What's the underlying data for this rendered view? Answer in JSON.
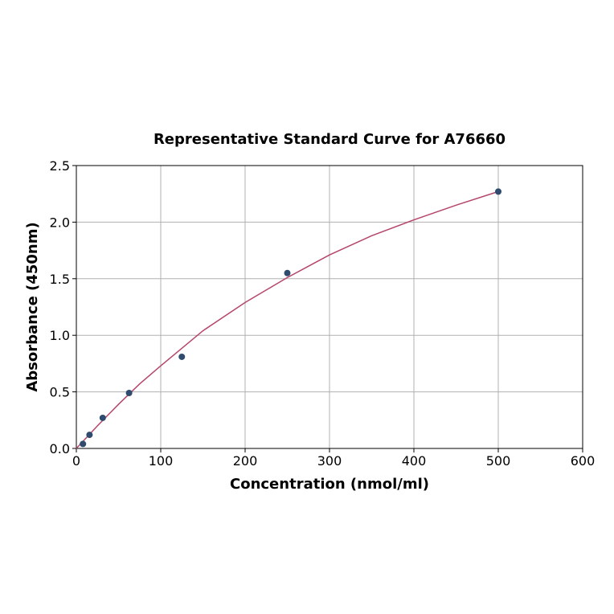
{
  "chart_data": {
    "type": "scatter",
    "title": "Representative Standard Curve for A76660",
    "xlabel": "Concentration (nmol/ml)",
    "ylabel": "Absorbance (450nm)",
    "xlim": [
      0,
      600
    ],
    "ylim": [
      0,
      2.5
    ],
    "xticks": [
      0,
      100,
      200,
      300,
      400,
      500,
      600
    ],
    "yticks": [
      0.0,
      0.5,
      1.0,
      1.5,
      2.0,
      2.5
    ],
    "xtick_labels": [
      "0",
      "100",
      "200",
      "300",
      "400",
      "500",
      "600"
    ],
    "ytick_labels": [
      "0.0",
      "0.5",
      "1.0",
      "1.5",
      "2.0",
      "2.5"
    ],
    "grid": true,
    "series": [
      {
        "type": "scatter",
        "color": "#2f4b6e",
        "x": [
          7.8,
          15.6,
          31.25,
          62.5,
          125,
          250,
          500
        ],
        "y": [
          0.04,
          0.12,
          0.27,
          0.49,
          0.81,
          1.55,
          2.27
        ]
      },
      {
        "type": "line",
        "color": "#b5466b",
        "fit": "four-parameter curve",
        "x": [
          0,
          10,
          25,
          50,
          75,
          100,
          150,
          200,
          250,
          300,
          350,
          400,
          450,
          500
        ],
        "y": [
          0.0,
          0.08,
          0.2,
          0.39,
          0.57,
          0.73,
          1.04,
          1.29,
          1.51,
          1.71,
          1.88,
          2.02,
          2.15,
          2.27
        ]
      }
    ]
  }
}
